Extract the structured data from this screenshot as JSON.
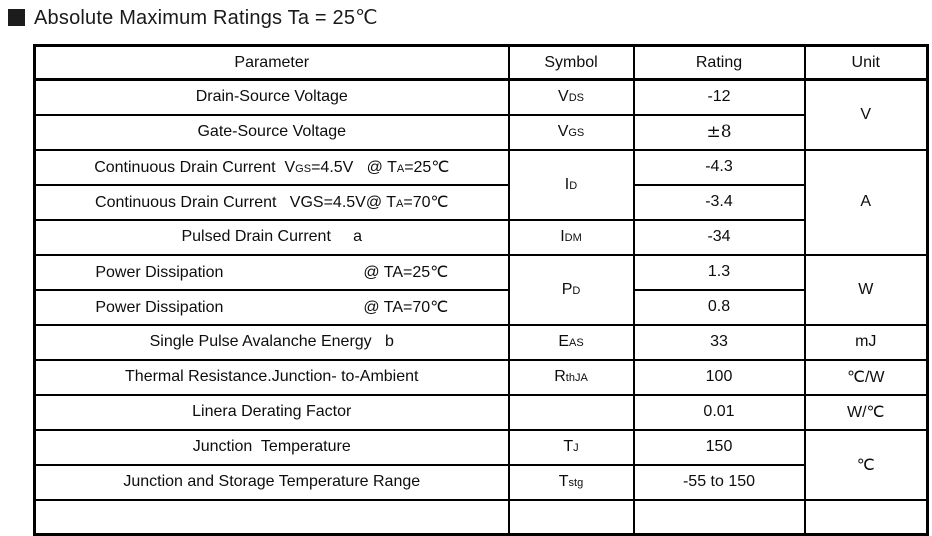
{
  "title": {
    "bullet_icon": "filled-square",
    "text": "Absolute Maximum Ratings Ta = 25℃"
  },
  "table": {
    "headers": [
      "Parameter",
      "Symbol",
      "Rating",
      "Unit"
    ],
    "rows": [
      {
        "param": [
          {
            "t": "Drain-Source Voltage"
          }
        ],
        "symbol": [
          {
            "t": "V"
          },
          {
            "t": "DS",
            "s": true
          }
        ],
        "rating": "-12",
        "unit": "V"
      },
      {
        "param": [
          {
            "t": "Gate-Source Voltage"
          }
        ],
        "symbol": [
          {
            "t": "V"
          },
          {
            "t": "GS",
            "s": true
          }
        ],
        "rating": "±8"
      },
      {
        "param": [
          {
            "t": "Continuous Drain Current  V"
          },
          {
            "t": "GS",
            "s": true
          },
          {
            "t": "=4.5V   @ T"
          },
          {
            "t": "A",
            "s": true
          },
          {
            "t": "=25℃"
          }
        ],
        "symbol": [
          {
            "t": "I"
          },
          {
            "t": "D",
            "s": true
          }
        ],
        "rating": "-4.3",
        "unit": "A"
      },
      {
        "param": [
          {
            "t": "Continuous Drain Current   VGS=4.5V@ T"
          },
          {
            "t": "A",
            "s": true
          },
          {
            "t": "=70℃"
          }
        ],
        "rating": "-3.4"
      },
      {
        "param": [
          {
            "t": "Pulsed Drain Current     a"
          }
        ],
        "symbol": [
          {
            "t": "I"
          },
          {
            "t": "DM",
            "s": true
          }
        ],
        "rating": "-34"
      },
      {
        "param": [
          {
            "t": "Power Dissipation"
          },
          {
            "t": "@ TA=25℃",
            "g": true
          }
        ],
        "symbol": [
          {
            "t": "P"
          },
          {
            "t": "D",
            "s": true
          }
        ],
        "rating": "1.3",
        "unit": "W"
      },
      {
        "param": [
          {
            "t": "Power Dissipation"
          },
          {
            "t": "@ TA=70℃",
            "g": true
          }
        ],
        "rating": "0.8"
      },
      {
        "param": [
          {
            "t": "Single Pulse Avalanche Energy   b"
          }
        ],
        "symbol": [
          {
            "t": "E"
          },
          {
            "t": "AS",
            "s": true
          }
        ],
        "rating": "33",
        "unit": "mJ"
      },
      {
        "param": [
          {
            "t": "Thermal Resistance.Junction- to-Ambient"
          }
        ],
        "symbol": [
          {
            "t": "R"
          },
          {
            "t": "thJA",
            "s": true
          }
        ],
        "rating": "100",
        "unit": "℃/W"
      },
      {
        "param": [
          {
            "t": "Linera Derating Factor"
          }
        ],
        "symbol": [],
        "rating": "0.01",
        "unit": "W/℃"
      },
      {
        "param": [
          {
            "t": "Junction  Temperature"
          }
        ],
        "symbol": [
          {
            "t": "T"
          },
          {
            "t": "J",
            "s": true
          }
        ],
        "rating": "150",
        "unit": "℃"
      },
      {
        "param": [
          {
            "t": "Junction and Storage Temperature Range"
          }
        ],
        "symbol": [
          {
            "t": "T"
          },
          {
            "t": "stg",
            "s": true
          }
        ],
        "rating": "-55 to 150"
      }
    ]
  }
}
